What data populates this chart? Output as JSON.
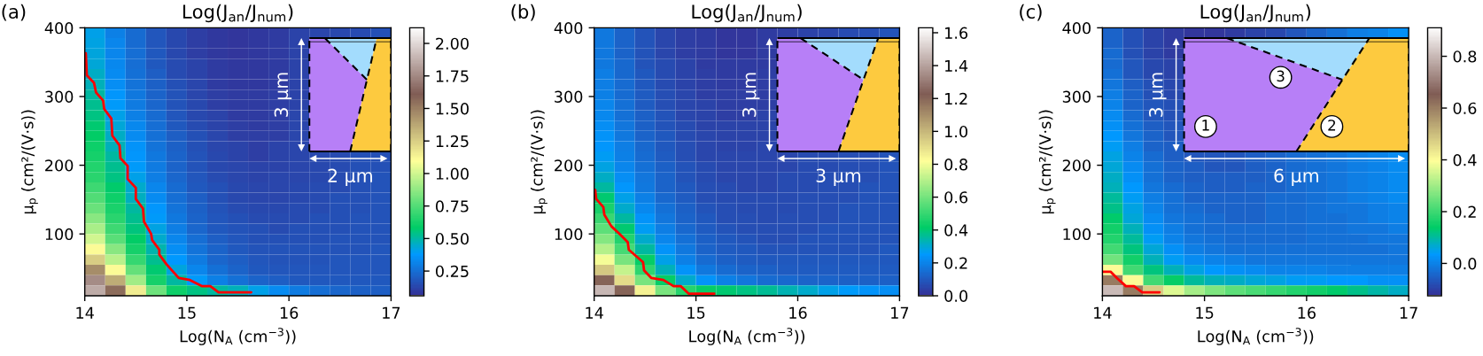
{
  "chart_data": [
    {
      "type": "heatmap",
      "title": "Log(J$_{an}$/J$_{num}$)",
      "xlabel": "Log(N$_{A}$ (cm$^{−3}$))",
      "ylabel": "μ$_{p}$ (cm²/(V·s))",
      "xlim": [
        14,
        17
      ],
      "xticks": [
        14,
        15,
        16,
        17
      ],
      "ylim": [
        10,
        400
      ],
      "yticks": [
        100,
        200,
        300,
        400
      ],
      "clim": [
        0.06,
        2.12
      ],
      "cticks": [
        {
          "value": 0.25,
          "label": "0.25"
        },
        {
          "value": 0.5,
          "label": "0.50"
        },
        {
          "value": 0.75,
          "label": "0.75"
        },
        {
          "value": 1,
          "label": "1.00"
        },
        {
          "value": 1.25,
          "label": "1.25"
        },
        {
          "value": 1.5,
          "label": "1.50"
        },
        {
          "value": 1.75,
          "label": "1.75"
        },
        {
          "value": 2,
          "label": "2.00"
        }
      ],
      "cells": [
        [
          0.4,
          0.3,
          0.23,
          0.17,
          0.13,
          0.1,
          0.08,
          0.07,
          0.08,
          0.09,
          0.11,
          0.12,
          0.13,
          0.14,
          0.15
        ],
        [
          0.41,
          0.31,
          0.23,
          0.17,
          0.13,
          0.1,
          0.08,
          0.07,
          0.08,
          0.09,
          0.11,
          null,
          null,
          null,
          null
        ],
        [
          0.42,
          0.31,
          0.24,
          0.18,
          0.13,
          0.1,
          0.08,
          0.07,
          0.08,
          0.09,
          0.11,
          null,
          null,
          null,
          null
        ],
        [
          0.43,
          0.32,
          0.24,
          0.18,
          0.14,
          0.11,
          0.09,
          0.08,
          0.08,
          0.09,
          0.11,
          null,
          null,
          null,
          null
        ],
        [
          0.45,
          0.33,
          0.25,
          0.19,
          0.14,
          0.11,
          0.09,
          0.08,
          0.08,
          0.09,
          0.11,
          null,
          null,
          null,
          null
        ],
        [
          0.47,
          0.34,
          0.26,
          0.2,
          0.15,
          0.12,
          0.09,
          0.08,
          0.08,
          0.09,
          0.11,
          null,
          null,
          null,
          null
        ],
        [
          0.5,
          0.36,
          0.27,
          0.21,
          0.16,
          0.12,
          0.1,
          0.09,
          0.09,
          0.1,
          0.11,
          null,
          null,
          null,
          null
        ],
        [
          0.52,
          0.38,
          0.28,
          0.22,
          0.16,
          0.13,
          0.1,
          0.09,
          0.09,
          0.1,
          0.11,
          null,
          null,
          null,
          null
        ],
        [
          0.54,
          0.4,
          0.3,
          0.23,
          0.17,
          0.13,
          0.11,
          0.09,
          0.09,
          0.1,
          0.12,
          null,
          null,
          null,
          null
        ],
        [
          0.56,
          0.43,
          0.32,
          0.24,
          0.18,
          0.14,
          0.11,
          0.1,
          0.09,
          0.1,
          0.12,
          null,
          null,
          null,
          null
        ],
        [
          0.58,
          0.45,
          0.33,
          0.25,
          0.19,
          0.15,
          0.12,
          0.1,
          0.1,
          0.1,
          0.12,
          null,
          null,
          null,
          null
        ],
        [
          0.6,
          0.47,
          0.35,
          0.26,
          0.2,
          0.15,
          0.12,
          0.11,
          0.1,
          0.11,
          0.12,
          null,
          null,
          null,
          null
        ],
        [
          0.62,
          0.5,
          0.36,
          0.27,
          0.21,
          0.16,
          0.13,
          0.11,
          0.1,
          0.11,
          0.12,
          0.13,
          0.14,
          0.15,
          0.15
        ],
        [
          0.64,
          0.52,
          0.38,
          0.28,
          0.21,
          0.16,
          0.13,
          0.12,
          0.11,
          0.11,
          0.12,
          0.13,
          0.14,
          0.15,
          0.15
        ],
        [
          0.66,
          0.54,
          0.4,
          0.29,
          0.22,
          0.17,
          0.14,
          0.12,
          0.11,
          0.12,
          0.12,
          0.13,
          0.14,
          0.15,
          0.16
        ],
        [
          0.7,
          0.57,
          0.44,
          0.31,
          0.23,
          0.18,
          0.15,
          0.13,
          0.12,
          0.12,
          0.13,
          0.14,
          0.14,
          0.15,
          0.16
        ],
        [
          0.74,
          0.6,
          0.46,
          0.33,
          0.24,
          0.19,
          0.15,
          0.13,
          0.12,
          0.12,
          0.13,
          0.14,
          0.15,
          0.15,
          0.16
        ],
        [
          0.79,
          0.63,
          0.5,
          0.36,
          0.26,
          0.2,
          0.16,
          0.14,
          0.13,
          0.13,
          0.14,
          0.14,
          0.15,
          0.15,
          0.16
        ],
        [
          0.85,
          0.66,
          0.52,
          0.38,
          0.27,
          0.21,
          0.17,
          0.15,
          0.14,
          0.14,
          0.14,
          0.15,
          0.15,
          0.16,
          0.16
        ],
        [
          0.92,
          0.7,
          0.55,
          0.41,
          0.29,
          0.22,
          0.18,
          0.16,
          0.15,
          0.14,
          0.15,
          0.15,
          0.15,
          0.16,
          0.16
        ],
        [
          1.0,
          0.76,
          0.58,
          0.44,
          0.31,
          0.24,
          0.19,
          0.17,
          0.15,
          0.15,
          0.15,
          0.15,
          0.16,
          0.16,
          0.16
        ],
        [
          1.1,
          0.85,
          0.62,
          0.48,
          0.34,
          0.26,
          0.21,
          0.18,
          0.16,
          0.16,
          0.16,
          0.16,
          0.16,
          0.16,
          0.17
        ],
        [
          1.25,
          0.95,
          0.68,
          0.52,
          0.37,
          0.28,
          0.22,
          0.19,
          0.17,
          0.16,
          0.16,
          0.16,
          0.17,
          0.17,
          0.17
        ],
        [
          1.45,
          1.1,
          0.78,
          0.56,
          0.42,
          0.31,
          0.25,
          0.21,
          0.18,
          0.17,
          0.17,
          0.17,
          0.17,
          0.17,
          0.17
        ],
        [
          1.75,
          1.35,
          0.9,
          0.62,
          0.5,
          0.38,
          0.3,
          0.25,
          0.21,
          0.19,
          0.18,
          0.18,
          0.18,
          0.18,
          0.18
        ],
        [
          1.85,
          1.55,
          1.15,
          0.8,
          0.6,
          0.54,
          0.5,
          0.47,
          0.4,
          0.33,
          0.28,
          0.24,
          0.22,
          0.2,
          0.19
        ]
      ],
      "series": [
        {
          "type": "line",
          "color": "#ff0000",
          "x": [
            14.01,
            14.02,
            14.09,
            14.11,
            14.18,
            14.19,
            14.26,
            14.27,
            14.34,
            14.35,
            14.42,
            14.42,
            14.5,
            14.5,
            14.57,
            14.58,
            14.65,
            14.66,
            14.73,
            14.73,
            14.8,
            14.92,
            15.03,
            15.15,
            15.23,
            15.31,
            15.63
          ],
          "values": [
            363,
            331,
            320,
            306,
            294,
            282,
            268,
            243,
            229,
            210,
            199,
            180,
            167,
            151,
            137,
            118,
            100,
            91,
            77,
            70,
            56,
            36,
            33,
            24,
            24,
            15,
            15
          ]
        }
      ],
      "annotations": [
        "(a)",
        "3 μm",
        "2 μm"
      ]
    },
    {
      "type": "heatmap",
      "title": "Log(J$_{an}$/J$_{num}$)",
      "xlabel": "Log(N$_{A}$ (cm$^{−3}$))",
      "ylabel": "μ$_{p}$ (cm²/(V·s))",
      "xlim": [
        14,
        17
      ],
      "xticks": [
        14,
        15,
        16,
        17
      ],
      "ylim": [
        10,
        400
      ],
      "yticks": [
        100,
        200,
        300,
        400
      ],
      "clim": [
        0,
        1.63
      ],
      "cticks": [
        {
          "value": 0,
          "label": "0.0"
        },
        {
          "value": 0.2,
          "label": "0.2"
        },
        {
          "value": 0.4,
          "label": "0.4"
        },
        {
          "value": 0.6,
          "label": "0.6"
        },
        {
          "value": 0.8,
          "label": "0.8"
        },
        {
          "value": 1,
          "label": "1.0"
        },
        {
          "value": 1.2,
          "label": "1.2"
        },
        {
          "value": 1.4,
          "label": "1.4"
        },
        {
          "value": 1.6,
          "label": "1.6"
        }
      ],
      "cells": [
        [
          0.17,
          0.12,
          0.08,
          0.05,
          0.03,
          0.02,
          0.01,
          0.01,
          0.02,
          0.03,
          0.04,
          0.05,
          0.06,
          0.07,
          0.08
        ],
        [
          0.17,
          0.12,
          0.08,
          0.05,
          0.03,
          0.02,
          0.01,
          0.01,
          0.02,
          null,
          null,
          null,
          null,
          null,
          null
        ],
        [
          0.17,
          0.12,
          0.08,
          0.05,
          0.03,
          0.02,
          0.01,
          0.01,
          0.02,
          null,
          null,
          null,
          null,
          null,
          null
        ],
        [
          0.17,
          0.13,
          0.08,
          0.06,
          0.04,
          0.02,
          0.02,
          0.02,
          0.02,
          null,
          null,
          null,
          null,
          null,
          null
        ],
        [
          0.18,
          0.13,
          0.09,
          0.06,
          0.04,
          0.03,
          0.02,
          0.02,
          0.03,
          null,
          null,
          null,
          null,
          null,
          null
        ],
        [
          0.18,
          0.14,
          0.09,
          0.06,
          0.04,
          0.03,
          0.02,
          0.02,
          0.03,
          null,
          null,
          null,
          null,
          null,
          null
        ],
        [
          0.19,
          0.14,
          0.1,
          0.07,
          0.05,
          0.03,
          0.03,
          0.03,
          0.03,
          null,
          null,
          null,
          null,
          null,
          null
        ],
        [
          0.2,
          0.15,
          0.1,
          0.07,
          0.05,
          0.04,
          0.03,
          0.03,
          0.03,
          null,
          null,
          null,
          null,
          null,
          null
        ],
        [
          0.21,
          0.15,
          0.11,
          0.08,
          0.05,
          0.04,
          0.03,
          0.03,
          0.04,
          null,
          null,
          null,
          null,
          null,
          null
        ],
        [
          0.22,
          0.16,
          0.11,
          0.08,
          0.06,
          0.04,
          0.04,
          0.04,
          0.04,
          null,
          null,
          null,
          null,
          null,
          null
        ],
        [
          0.23,
          0.17,
          0.12,
          0.09,
          0.06,
          0.05,
          0.04,
          0.04,
          0.04,
          null,
          null,
          null,
          null,
          null,
          null
        ],
        [
          0.24,
          0.18,
          0.13,
          0.09,
          0.07,
          0.05,
          0.04,
          0.04,
          0.05,
          null,
          null,
          null,
          null,
          null,
          null
        ],
        [
          0.26,
          0.19,
          0.14,
          0.1,
          0.07,
          0.05,
          0.05,
          0.05,
          0.05,
          0.05,
          0.06,
          0.06,
          0.07,
          0.07,
          0.08
        ],
        [
          0.28,
          0.2,
          0.15,
          0.11,
          0.08,
          0.06,
          0.05,
          0.05,
          0.05,
          0.05,
          0.06,
          0.06,
          0.07,
          0.07,
          0.08
        ],
        [
          0.31,
          0.22,
          0.16,
          0.12,
          0.08,
          0.06,
          0.05,
          0.05,
          0.05,
          0.06,
          0.06,
          0.07,
          0.07,
          0.07,
          0.08
        ],
        [
          0.35,
          0.24,
          0.17,
          0.12,
          0.09,
          0.07,
          0.06,
          0.05,
          0.05,
          0.06,
          0.06,
          0.07,
          0.07,
          0.08,
          0.08
        ],
        [
          0.4,
          0.27,
          0.19,
          0.13,
          0.1,
          0.07,
          0.06,
          0.06,
          0.06,
          0.06,
          0.07,
          0.07,
          0.07,
          0.08,
          0.08
        ],
        [
          0.45,
          0.3,
          0.21,
          0.15,
          0.11,
          0.08,
          0.07,
          0.06,
          0.06,
          0.06,
          0.07,
          0.07,
          0.08,
          0.08,
          0.08
        ],
        [
          0.5,
          0.35,
          0.23,
          0.16,
          0.12,
          0.09,
          0.07,
          0.07,
          0.06,
          0.07,
          0.07,
          0.07,
          0.08,
          0.08,
          0.08
        ],
        [
          0.56,
          0.4,
          0.26,
          0.18,
          0.13,
          0.1,
          0.08,
          0.07,
          0.07,
          0.07,
          0.07,
          0.08,
          0.08,
          0.08,
          0.08
        ],
        [
          0.62,
          0.46,
          0.3,
          0.2,
          0.15,
          0.11,
          0.09,
          0.08,
          0.07,
          0.07,
          0.08,
          0.08,
          0.08,
          0.08,
          0.08
        ],
        [
          0.7,
          0.52,
          0.35,
          0.23,
          0.17,
          0.12,
          0.1,
          0.09,
          0.08,
          0.08,
          0.08,
          0.08,
          0.08,
          0.08,
          0.09
        ],
        [
          0.8,
          0.6,
          0.42,
          0.27,
          0.19,
          0.14,
          0.11,
          0.1,
          0.09,
          0.09,
          0.09,
          0.09,
          0.09,
          0.09,
          0.09
        ],
        [
          0.95,
          0.72,
          0.48,
          0.32,
          0.23,
          0.17,
          0.14,
          0.12,
          0.11,
          0.1,
          0.1,
          0.1,
          0.1,
          0.1,
          0.1
        ],
        [
          1.2,
          0.9,
          0.6,
          0.42,
          0.3,
          0.23,
          0.19,
          0.16,
          0.14,
          0.13,
          0.12,
          0.12,
          0.11,
          0.11,
          0.11
        ],
        [
          1.45,
          1.2,
          0.85,
          0.6,
          0.47,
          0.42,
          0.4,
          0.38,
          0.36,
          0.33,
          0.3,
          0.27,
          0.25,
          0.23,
          0.22
        ]
      ],
      "series": [
        {
          "type": "line",
          "color": "#ff0000",
          "x": [
            14.01,
            14.02,
            14.09,
            14.1,
            14.17,
            14.25,
            14.33,
            14.34,
            14.48,
            14.49,
            14.56,
            14.68,
            14.78,
            14.85,
            14.93,
            15.18
          ],
          "values": [
            164,
            151,
            139,
            128,
            111,
            100,
            88,
            77,
            59,
            47,
            36,
            33,
            24,
            24,
            13,
            13
          ]
        }
      ],
      "annotations": [
        "(b)",
        "3 μm",
        "3 μm"
      ]
    },
    {
      "type": "heatmap",
      "title": "Log(J$_{an}$/J$_{num}$)",
      "xlabel": "Log(N$_{A}$ (cm$^{−3}$))",
      "ylabel": "μ$_{p}$ (cm²/(V·s))",
      "xlim": [
        14,
        17
      ],
      "xticks": [
        14,
        15,
        16,
        17
      ],
      "ylim": [
        10,
        400
      ],
      "yticks": [
        100,
        200,
        300,
        400
      ],
      "clim": [
        -0.125,
        0.91
      ],
      "cticks": [
        {
          "value": 0,
          "label": "0.0"
        },
        {
          "value": 0.2,
          "label": "0.2"
        },
        {
          "value": 0.4,
          "label": "0.4"
        },
        {
          "value": 0.6,
          "label": "0.6"
        },
        {
          "value": 0.8,
          "label": "0.8"
        }
      ],
      "cells": [
        [
          -0.05,
          -0.08,
          -0.1,
          -0.11,
          -0.12,
          -0.12,
          -0.11,
          -0.1,
          -0.09,
          -0.07,
          -0.05,
          -0.03,
          -0.01,
          0.0,
          0.02
        ],
        [
          -0.05,
          -0.08,
          -0.1,
          -0.11,
          null,
          null,
          null,
          null,
          null,
          null,
          null,
          null,
          null,
          null,
          null
        ],
        [
          -0.04,
          -0.08,
          -0.1,
          -0.11,
          null,
          null,
          null,
          null,
          null,
          null,
          null,
          null,
          null,
          null,
          null
        ],
        [
          -0.04,
          -0.07,
          -0.09,
          -0.1,
          null,
          null,
          null,
          null,
          null,
          null,
          null,
          null,
          null,
          null,
          null
        ],
        [
          -0.03,
          -0.07,
          -0.09,
          -0.1,
          null,
          null,
          null,
          null,
          null,
          null,
          null,
          null,
          null,
          null,
          null
        ],
        [
          -0.02,
          -0.06,
          -0.08,
          -0.09,
          null,
          null,
          null,
          null,
          null,
          null,
          null,
          null,
          null,
          null,
          null
        ],
        [
          -0.01,
          -0.05,
          -0.08,
          -0.09,
          null,
          null,
          null,
          null,
          null,
          null,
          null,
          null,
          null,
          null,
          null
        ],
        [
          0.0,
          -0.05,
          -0.07,
          -0.08,
          null,
          null,
          null,
          null,
          null,
          null,
          null,
          null,
          null,
          null,
          null
        ],
        [
          0.01,
          -0.04,
          -0.07,
          -0.08,
          null,
          null,
          null,
          null,
          null,
          null,
          null,
          null,
          null,
          null,
          null
        ],
        [
          0.02,
          -0.03,
          -0.06,
          -0.07,
          null,
          null,
          null,
          null,
          null,
          null,
          null,
          null,
          null,
          null,
          null
        ],
        [
          0.03,
          -0.02,
          -0.05,
          -0.07,
          null,
          null,
          null,
          null,
          null,
          null,
          null,
          null,
          null,
          null,
          null
        ],
        [
          0.04,
          -0.01,
          -0.05,
          -0.06,
          null,
          null,
          null,
          null,
          null,
          null,
          null,
          null,
          null,
          null,
          null
        ],
        [
          0.05,
          0.0,
          -0.04,
          -0.06,
          -0.07,
          -0.07,
          -0.07,
          -0.06,
          -0.05,
          -0.04,
          -0.03,
          -0.02,
          -0.01,
          0.0,
          0.01
        ],
        [
          0.06,
          0.01,
          -0.03,
          -0.05,
          -0.06,
          -0.07,
          -0.07,
          -0.06,
          -0.05,
          -0.04,
          -0.03,
          -0.02,
          -0.01,
          0.0,
          0.01
        ],
        [
          0.07,
          0.02,
          -0.03,
          -0.05,
          -0.06,
          -0.06,
          -0.06,
          -0.06,
          -0.05,
          -0.04,
          -0.03,
          -0.02,
          -0.01,
          0.0,
          0.01
        ],
        [
          0.08,
          0.03,
          -0.02,
          -0.04,
          -0.05,
          -0.06,
          -0.06,
          -0.05,
          -0.05,
          -0.04,
          -0.03,
          -0.02,
          -0.01,
          0.0,
          0.01
        ],
        [
          0.1,
          0.04,
          -0.01,
          -0.03,
          -0.05,
          -0.05,
          -0.05,
          -0.05,
          -0.04,
          -0.04,
          -0.03,
          -0.02,
          -0.01,
          0.0,
          0.01
        ],
        [
          0.11,
          0.05,
          0.0,
          -0.03,
          -0.04,
          -0.05,
          -0.05,
          -0.05,
          -0.04,
          -0.04,
          -0.03,
          -0.02,
          -0.02,
          -0.01,
          0.0
        ],
        [
          0.13,
          0.06,
          0.01,
          -0.02,
          -0.03,
          -0.04,
          -0.05,
          -0.05,
          -0.04,
          -0.04,
          -0.03,
          -0.03,
          -0.02,
          -0.01,
          0.0
        ],
        [
          0.15,
          0.08,
          0.02,
          -0.01,
          -0.03,
          -0.04,
          -0.04,
          -0.04,
          -0.04,
          -0.04,
          -0.03,
          -0.03,
          -0.02,
          -0.02,
          -0.01
        ],
        [
          0.17,
          0.1,
          0.04,
          0.0,
          -0.02,
          -0.03,
          -0.04,
          -0.04,
          -0.04,
          -0.04,
          -0.03,
          -0.03,
          -0.03,
          -0.02,
          -0.02
        ],
        [
          0.2,
          0.12,
          0.06,
          0.02,
          -0.01,
          -0.02,
          -0.03,
          -0.03,
          -0.03,
          -0.03,
          -0.03,
          -0.03,
          -0.03,
          -0.03,
          -0.02
        ],
        [
          0.25,
          0.15,
          0.08,
          0.04,
          0.01,
          0.0,
          -0.01,
          -0.02,
          -0.02,
          -0.02,
          -0.02,
          -0.02,
          -0.02,
          -0.02,
          -0.02
        ],
        [
          0.4,
          0.2,
          0.12,
          0.08,
          0.05,
          0.03,
          0.02,
          0.01,
          0.0,
          0.0,
          0.0,
          -0.01,
          -0.01,
          -0.01,
          -0.01
        ],
        [
          0.6,
          0.4,
          0.2,
          0.14,
          0.1,
          0.08,
          0.07,
          0.06,
          0.05,
          0.04,
          0.04,
          0.03,
          0.03,
          0.02,
          0.02
        ],
        [
          0.8,
          0.6,
          0.47,
          0.36,
          0.3,
          0.26,
          0.23,
          0.21,
          0.19,
          0.17,
          0.15,
          0.13,
          0.11,
          0.09,
          0.07
        ]
      ],
      "series": [
        {
          "type": "line",
          "color": "#ff0000",
          "x": [
            14.0,
            14.08,
            14.14,
            14.23,
            14.31,
            14.39,
            14.56
          ],
          "values": [
            45,
            45,
            36,
            24,
            24,
            15,
            15
          ]
        }
      ],
      "annotations": [
        "(c)",
        "3 μm",
        "6 μm",
        "1",
        "2",
        "3"
      ]
    }
  ]
}
